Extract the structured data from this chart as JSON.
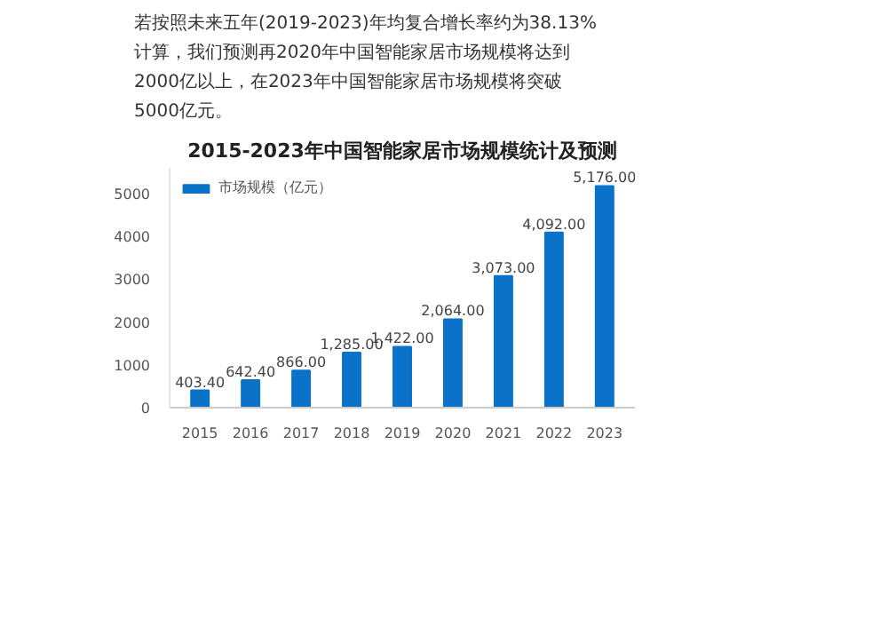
{
  "chart_data": {
    "type": "bar",
    "title": "2015-2023年中国智能家居市场规模统计及预测",
    "annotations": [
      "若按照未来五年(2019-2023)年均复合增长率约为38.13%\n计算，我们预测再2020年中国智能家居市场规模将达到\n2000亿以上，在2023年中国智能家居市场规模将突破\n5000亿元。"
    ],
    "categories": [
      "2015",
      "2016",
      "2017",
      "2018",
      "2019",
      "2020",
      "2021",
      "2022",
      "2023"
    ],
    "series": [
      {
        "name": "市场规模（亿元）",
        "color": "#0a72c8",
        "values": [
          403.4,
          642.4,
          866.0,
          1285.0,
          1422.0,
          2064.0,
          3073.0,
          4092.0,
          5176.0
        ]
      }
    ],
    "value_labels": [
      "403.40",
      "642.40",
      "866.00",
      "1,285.00",
      "1,422.00",
      "2,064.00",
      "3,073.00",
      "4,092.00",
      "5,176.00"
    ],
    "ylim": [
      0,
      5600
    ],
    "yticks": [
      0,
      1000,
      2000,
      3000,
      4000,
      5000
    ],
    "grid": false,
    "legend": "top left"
  }
}
